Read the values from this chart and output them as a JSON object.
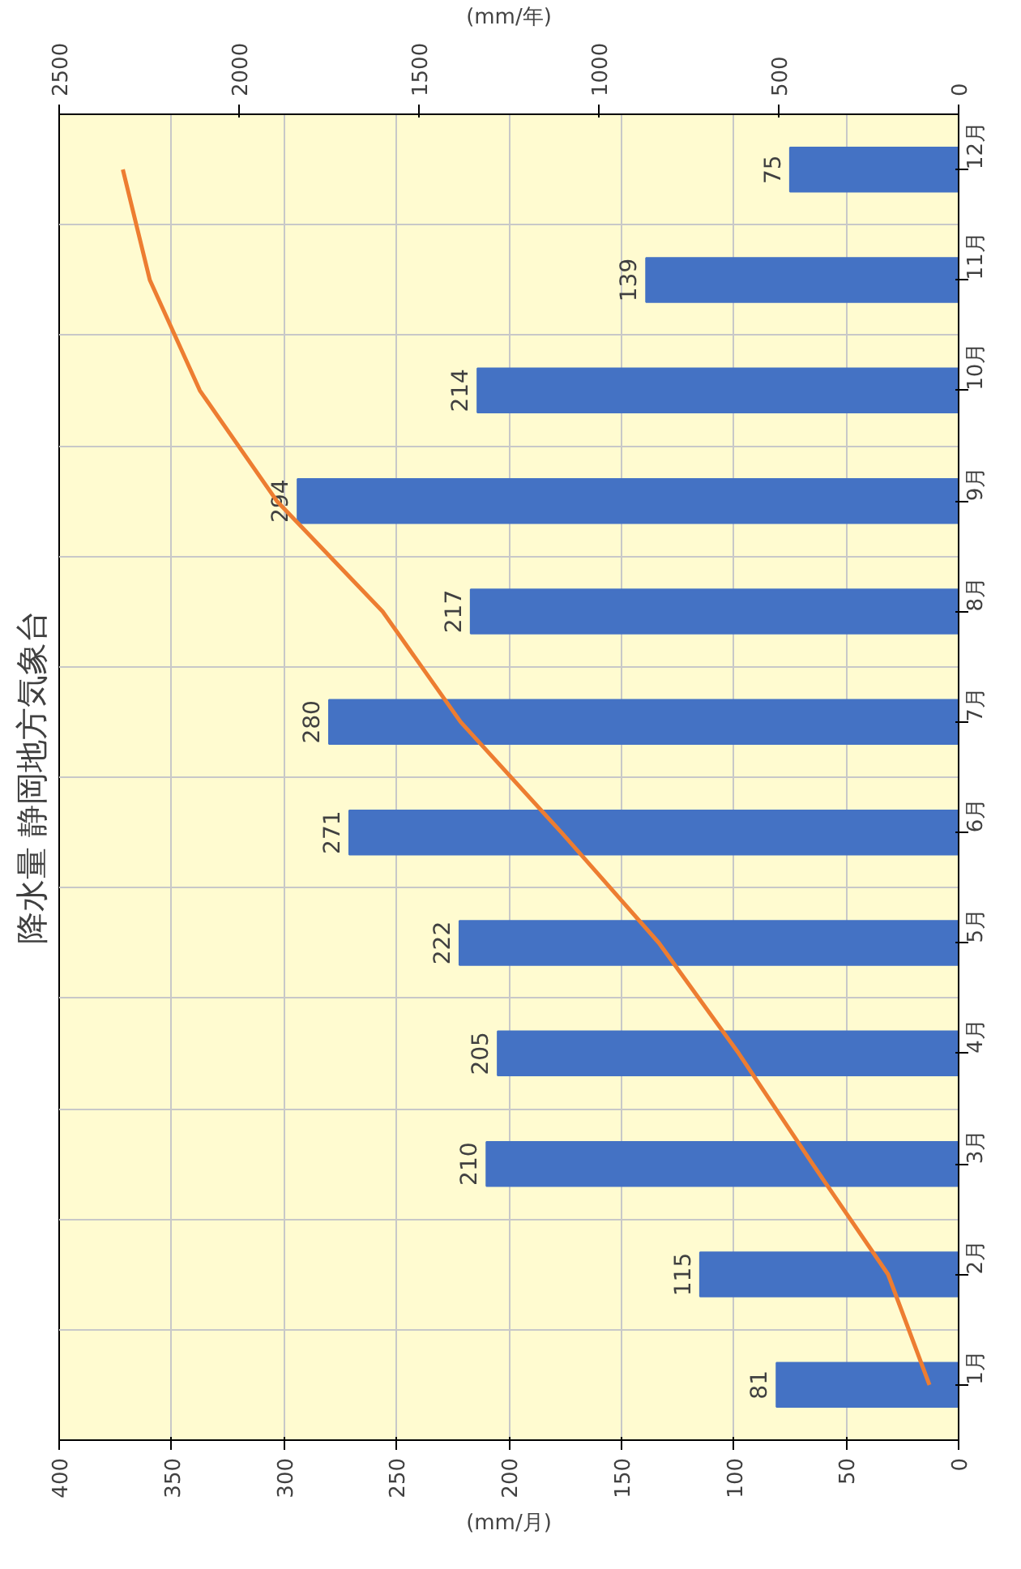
{
  "chart_data": {
    "type": "bar",
    "orientation": "horizontal",
    "title": "降水量 静岡地方気象台",
    "xlabel": "(mm/月)",
    "x2label": "(mm/年)",
    "categories": [
      "12月",
      "11月",
      "10月",
      "9月",
      "8月",
      "7月",
      "6月",
      "5月",
      "4月",
      "3月",
      "2月",
      "1月"
    ],
    "series": [
      {
        "type": "bar",
        "color": "#4472c4",
        "values": [
          75,
          139,
          214,
          294,
          217,
          280,
          271,
          222,
          205,
          210,
          115,
          81
        ],
        "value_labels": [
          "75",
          "139",
          "214",
          "294",
          "217",
          "280",
          "271",
          "222",
          "205",
          "210",
          "115",
          "81"
        ]
      },
      {
        "type": "line",
        "axis": "x2",
        "color": "#ed7d31",
        "values": [
          2323,
          2248,
          2109,
          1895,
          1601,
          1384,
          1104,
          833,
          611,
          406,
          196,
          81
        ]
      }
    ],
    "xlim": [
      400,
      0
    ],
    "xticks": [
      400,
      350,
      300,
      250,
      200,
      150,
      100,
      50,
      0
    ],
    "x2lim": [
      2500,
      0
    ],
    "x2ticks": [
      2500,
      2000,
      1500,
      1000,
      500,
      0
    ],
    "grid": true
  }
}
